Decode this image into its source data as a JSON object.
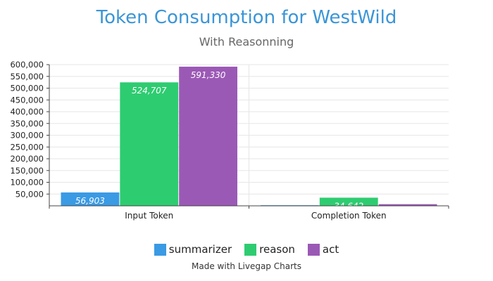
{
  "chart_data": {
    "type": "bar",
    "title": "Token Consumption for WestWild",
    "subtitle": "With Reasonning",
    "categories": [
      "Input Token",
      "Completion Token"
    ],
    "series": [
      {
        "name": "summarizer",
        "color": "#3a9ae4",
        "values": [
          56903,
          2500
        ],
        "labels": [
          "56,903",
          ""
        ]
      },
      {
        "name": "reason",
        "color": "#2ecc71",
        "values": [
          524707,
          34642
        ],
        "labels": [
          "524,707",
          "34,642"
        ]
      },
      {
        "name": "act",
        "color": "#9b59b6",
        "values": [
          591330,
          7000
        ],
        "labels": [
          "591,330",
          ""
        ]
      }
    ],
    "yticks": [
      "50,000",
      "100,000",
      "150,000",
      "200,000",
      "250,000",
      "300,000",
      "350,000",
      "400,000",
      "450,000",
      "500,000",
      "550,000",
      "600,000"
    ],
    "ylim": [
      0,
      600000
    ],
    "grid": true,
    "legend_position": "bottom"
  },
  "footer": "Made with Livegap Charts"
}
